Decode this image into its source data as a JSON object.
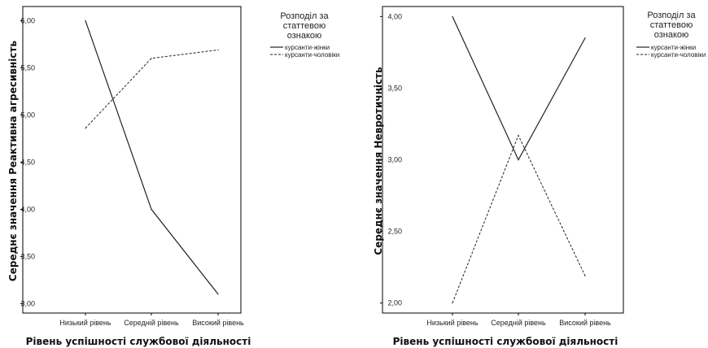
{
  "chart_data": [
    {
      "type": "line",
      "categories": [
        "Низький рівень",
        "Середній рівень",
        "Високий рівень"
      ],
      "series": [
        {
          "name": "курсанти-жінки",
          "values": [
            6.0,
            4.0,
            3.1
          ],
          "style": "solid"
        },
        {
          "name": "курсанти-чоловіки",
          "values": [
            4.86,
            5.6,
            5.69
          ],
          "style": "dashed"
        }
      ],
      "xlabel": "Рівень успішності службової діяльності",
      "ylabel": "Середнє значення Реактивна агресивність",
      "ylim": [
        2.9,
        6.15
      ],
      "yticks": [
        3.0,
        3.5,
        4.0,
        4.5,
        5.0,
        5.5,
        6.0
      ],
      "ytick_labels": [
        "3,00",
        "3,50",
        "4,00",
        "4,50",
        "5,00",
        "5,50",
        "6,00"
      ],
      "legend_title": [
        "Розподіл за",
        "статтевою",
        "ознакою"
      ],
      "legend_position": "right",
      "grid": false
    },
    {
      "type": "line",
      "categories": [
        "Низький рівень",
        "Середній рівень",
        "Високий рівень"
      ],
      "series": [
        {
          "name": "курсанти-жінки",
          "values": [
            4.0,
            3.0,
            3.85
          ],
          "style": "solid"
        },
        {
          "name": "курсанти-чоловіки",
          "values": [
            2.0,
            3.17,
            2.19
          ],
          "style": "dashed"
        }
      ],
      "xlabel": "Рівень успішності службової діяльності",
      "ylabel": "Середнє значення Невротичність",
      "ylim": [
        1.93,
        4.07
      ],
      "yticks": [
        2.0,
        2.5,
        3.0,
        3.5,
        4.0
      ],
      "ytick_labels": [
        "2,00",
        "2,50",
        "3,00",
        "3,50",
        "4,00"
      ],
      "legend_title": [
        "Розподіл за",
        "статтевою",
        "ознакою"
      ],
      "legend_position": "right",
      "grid": false
    }
  ]
}
